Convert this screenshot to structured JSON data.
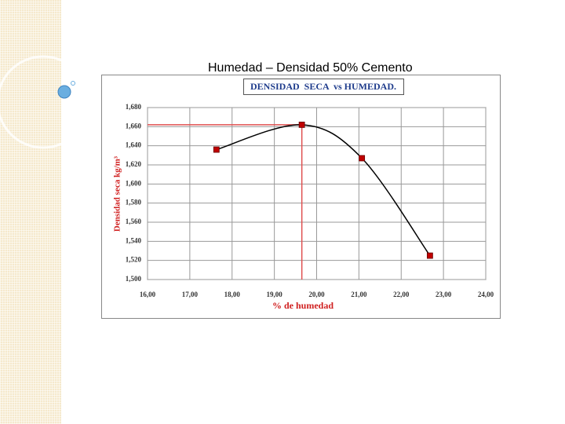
{
  "slide_title": "Humedad – Densidad 50% Cemento",
  "chart_data": {
    "type": "line",
    "title": "DENSIDAD  SECA  vs HUMEDAD.",
    "x_label": "% de humedad",
    "y_label": "Densidad seca kg/m³",
    "x": [
      17.63,
      19.65,
      21.07,
      22.68
    ],
    "values": [
      1636,
      1662,
      1627,
      1525
    ],
    "color": "#000000",
    "marker_color": "#c00000",
    "smooth": true,
    "max_reference_lines": true,
    "reference_color": "#e05050",
    "grid": true,
    "xlim": [
      16,
      24
    ],
    "xticks": [
      {
        "value": 16,
        "label": "16,00"
      },
      {
        "value": 17,
        "label": "17,00"
      },
      {
        "value": 18,
        "label": "18,00"
      },
      {
        "value": 19,
        "label": "19,00"
      },
      {
        "value": 20,
        "label": "20,00"
      },
      {
        "value": 21,
        "label": "21,00"
      },
      {
        "value": 22,
        "label": "22,00"
      },
      {
        "value": 23,
        "label": "23,00"
      },
      {
        "value": 24,
        "label": "24,00"
      }
    ],
    "ylim": [
      1500,
      1680
    ],
    "yticks": [
      {
        "value": 1500,
        "label": "1,500"
      },
      {
        "value": 1520,
        "label": "1,520"
      },
      {
        "value": 1540,
        "label": "1,540"
      },
      {
        "value": 1560,
        "label": "1,560"
      },
      {
        "value": 1580,
        "label": "1,580"
      },
      {
        "value": 1600,
        "label": "1,600"
      },
      {
        "value": 1620,
        "label": "1,620"
      },
      {
        "value": 1640,
        "label": "1,640"
      },
      {
        "value": 1660,
        "label": "1,660"
      },
      {
        "value": 1680,
        "label": "1,680"
      }
    ]
  }
}
